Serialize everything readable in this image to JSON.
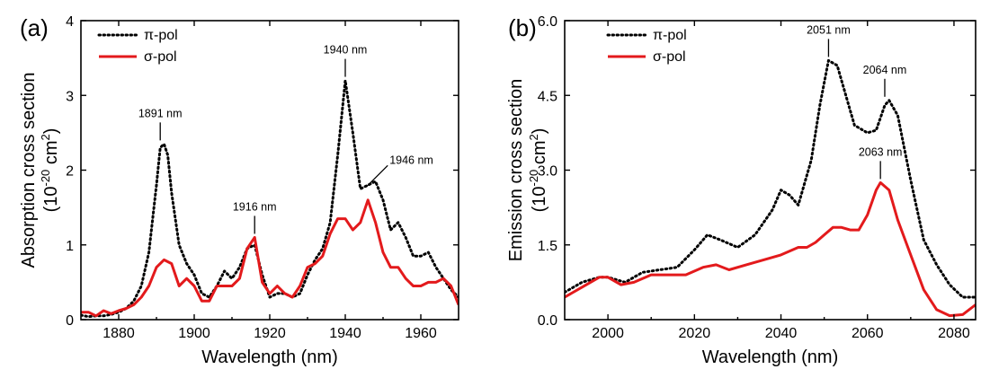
{
  "chart_data": [
    {
      "type": "line",
      "panel_label": "(a)",
      "xlabel": "Wavelength (nm)",
      "ylabel_line1": "Absorption cross section",
      "ylabel_line2": "(10-20 cm2)",
      "xlim": [
        1870,
        1970
      ],
      "ylim": [
        0,
        4
      ],
      "xticks": [
        1880,
        1900,
        1920,
        1940,
        1960
      ],
      "yticks": [
        0,
        1,
        2,
        3,
        4
      ],
      "ytick_labels": [
        "0",
        "1",
        "2",
        "3",
        "4"
      ],
      "legend_position": "top-left",
      "series": [
        {
          "name": "π-pol",
          "color": "#000000",
          "style": "dotted",
          "x": [
            1870,
            1872,
            1874,
            1876,
            1878,
            1880,
            1882,
            1884,
            1886,
            1888,
            1890,
            1891,
            1892,
            1893,
            1894,
            1896,
            1898,
            1900,
            1902,
            1904,
            1906,
            1908,
            1910,
            1912,
            1914,
            1916,
            1918,
            1920,
            1922,
            1924,
            1926,
            1928,
            1930,
            1932,
            1934,
            1936,
            1938,
            1940,
            1942,
            1944,
            1946,
            1948,
            1950,
            1952,
            1954,
            1956,
            1958,
            1960,
            1962,
            1964,
            1966,
            1968,
            1970
          ],
          "y": [
            0.06,
            0.04,
            0.05,
            0.05,
            0.07,
            0.1,
            0.15,
            0.25,
            0.45,
            0.9,
            1.8,
            2.3,
            2.35,
            2.2,
            1.7,
            1.0,
            0.75,
            0.6,
            0.35,
            0.3,
            0.45,
            0.65,
            0.55,
            0.7,
            0.95,
            1.0,
            0.6,
            0.3,
            0.35,
            0.35,
            0.3,
            0.35,
            0.6,
            0.8,
            0.95,
            1.3,
            2.2,
            3.2,
            2.5,
            1.75,
            1.8,
            1.85,
            1.6,
            1.2,
            1.3,
            1.1,
            0.85,
            0.85,
            0.9,
            0.7,
            0.55,
            0.4,
            0.3
          ]
        },
        {
          "name": "σ-pol",
          "color": "#e31a1c",
          "style": "solid",
          "x": [
            1870,
            1872,
            1874,
            1876,
            1878,
            1880,
            1882,
            1884,
            1886,
            1888,
            1890,
            1892,
            1894,
            1896,
            1898,
            1900,
            1902,
            1904,
            1906,
            1908,
            1910,
            1912,
            1914,
            1916,
            1918,
            1920,
            1922,
            1924,
            1926,
            1928,
            1930,
            1932,
            1934,
            1936,
            1938,
            1940,
            1942,
            1944,
            1946,
            1948,
            1950,
            1952,
            1954,
            1956,
            1958,
            1960,
            1962,
            1964,
            1966,
            1968,
            1970
          ],
          "y": [
            0.1,
            0.1,
            0.05,
            0.12,
            0.08,
            0.12,
            0.15,
            0.2,
            0.3,
            0.45,
            0.7,
            0.8,
            0.75,
            0.45,
            0.55,
            0.45,
            0.25,
            0.25,
            0.45,
            0.45,
            0.45,
            0.55,
            0.95,
            1.1,
            0.5,
            0.35,
            0.45,
            0.35,
            0.3,
            0.45,
            0.7,
            0.75,
            0.85,
            1.15,
            1.35,
            1.35,
            1.2,
            1.3,
            1.6,
            1.3,
            0.9,
            0.7,
            0.7,
            0.55,
            0.45,
            0.45,
            0.5,
            0.5,
            0.55,
            0.45,
            0.2
          ]
        }
      ],
      "annotations": [
        {
          "text": "1891 nm",
          "x": 1891,
          "y": 2.35
        },
        {
          "text": "1916 nm",
          "x": 1916,
          "y": 1.1
        },
        {
          "text": "1940 nm",
          "x": 1940,
          "y": 3.2
        },
        {
          "text": "1946 nm",
          "x": 1946,
          "y": 1.75
        }
      ]
    },
    {
      "type": "line",
      "panel_label": "(b)",
      "xlabel": "Wavelength (nm)",
      "ylabel_line1": "Emission cross section",
      "ylabel_line2": "(10-20 cm2)",
      "xlim": [
        1990,
        2085
      ],
      "ylim": [
        0,
        6
      ],
      "xticks": [
        2000,
        2020,
        2040,
        2060,
        2080
      ],
      "yticks": [
        0,
        1.5,
        3,
        4.5,
        6
      ],
      "ytick_labels": [
        "0.0",
        "1.5",
        "3.0",
        "4.5",
        "6.0"
      ],
      "legend_position": "top-left",
      "series": [
        {
          "name": "π-pol",
          "color": "#000000",
          "style": "dotted",
          "x": [
            1990,
            1994,
            1998,
            2000,
            2004,
            2008,
            2012,
            2016,
            2020,
            2023,
            2026,
            2030,
            2034,
            2038,
            2040,
            2042,
            2044,
            2047,
            2049,
            2051,
            2053,
            2055,
            2057,
            2060,
            2062,
            2064,
            2065,
            2067,
            2070,
            2073,
            2076,
            2079,
            2082,
            2085
          ],
          "y": [
            0.55,
            0.75,
            0.85,
            0.85,
            0.75,
            0.95,
            1.0,
            1.05,
            1.4,
            1.7,
            1.6,
            1.45,
            1.7,
            2.2,
            2.6,
            2.5,
            2.3,
            3.2,
            4.3,
            5.2,
            5.1,
            4.5,
            3.9,
            3.75,
            3.8,
            4.3,
            4.4,
            4.1,
            2.8,
            1.6,
            1.1,
            0.7,
            0.45,
            0.45
          ]
        },
        {
          "name": "σ-pol",
          "color": "#e31a1c",
          "style": "solid",
          "x": [
            1990,
            1994,
            1998,
            2000,
            2003,
            2006,
            2010,
            2014,
            2018,
            2022,
            2025,
            2028,
            2032,
            2036,
            2040,
            2044,
            2046,
            2048,
            2050,
            2052,
            2054,
            2056,
            2058,
            2060,
            2062,
            2063,
            2065,
            2067,
            2070,
            2073,
            2076,
            2079,
            2082,
            2085
          ],
          "y": [
            0.45,
            0.65,
            0.85,
            0.85,
            0.7,
            0.75,
            0.9,
            0.9,
            0.9,
            1.05,
            1.1,
            1.0,
            1.1,
            1.2,
            1.3,
            1.45,
            1.45,
            1.55,
            1.7,
            1.85,
            1.85,
            1.8,
            1.8,
            2.1,
            2.6,
            2.75,
            2.6,
            2.0,
            1.3,
            0.6,
            0.2,
            0.08,
            0.1,
            0.3
          ]
        }
      ],
      "annotations": [
        {
          "text": "2051 nm",
          "x": 2051,
          "y": 5.2
        },
        {
          "text": "2064 nm",
          "x": 2064,
          "y": 4.4
        },
        {
          "text": "2063 nm",
          "x": 2063,
          "y": 2.75
        }
      ]
    }
  ]
}
